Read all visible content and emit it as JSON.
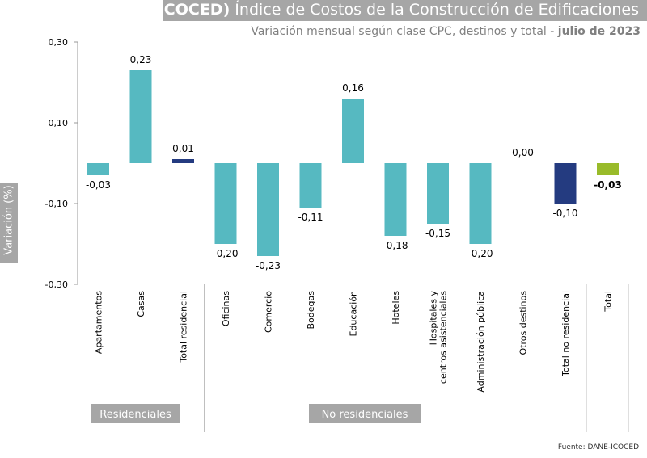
{
  "header": {
    "title_bold": "(ICOCED)",
    "title_rest": " Índice de Costos de la Construcción de Edificaciones",
    "subtitle_main": "Variación mensual según clase CPC, destinos y total - ",
    "subtitle_bold": "julio de 2023"
  },
  "footer": {
    "source": "Fuente: DANE-ICOCED"
  },
  "groups": {
    "residential": "Residenciales",
    "non_residential": "No residenciales"
  },
  "chart_data": {
    "type": "bar",
    "ylabel": "Variación (%)",
    "ylim": [
      -0.3,
      0.3
    ],
    "yticks": [
      0.3,
      0.1,
      -0.1,
      -0.3
    ],
    "ytick_labels": [
      "0,30",
      "0,10",
      "-0,10",
      "-0,30"
    ],
    "grid": false,
    "categories": [
      "Apartamentos",
      "Casas",
      "Total residencial",
      "Oficinas",
      "Comercio",
      "Bodegas",
      "Educación",
      "Hoteles",
      "Hospitales y centros asistenciales",
      "Administración pública",
      "Otros destinos",
      "Total no residencial",
      "Total"
    ],
    "values": [
      -0.03,
      0.23,
      0.01,
      -0.2,
      -0.23,
      -0.11,
      0.16,
      -0.18,
      -0.15,
      -0.2,
      0.0,
      -0.1,
      -0.03
    ],
    "value_labels": [
      "-0,03",
      "0,23",
      "0,01",
      "-0,20",
      "-0,23",
      "-0,11",
      "0,16",
      "-0,18",
      "-0,15",
      "-0,20",
      "0,00",
      "-0,10",
      "-0,03"
    ],
    "colors": [
      "#56b9c1",
      "#56b9c1",
      "#243b80",
      "#56b9c1",
      "#56b9c1",
      "#56b9c1",
      "#56b9c1",
      "#56b9c1",
      "#56b9c1",
      "#56b9c1",
      "#56b9c1",
      "#243b80",
      "#99bb2a"
    ],
    "bold_labels": [
      false,
      false,
      false,
      false,
      false,
      false,
      false,
      false,
      false,
      false,
      false,
      false,
      true
    ]
  }
}
